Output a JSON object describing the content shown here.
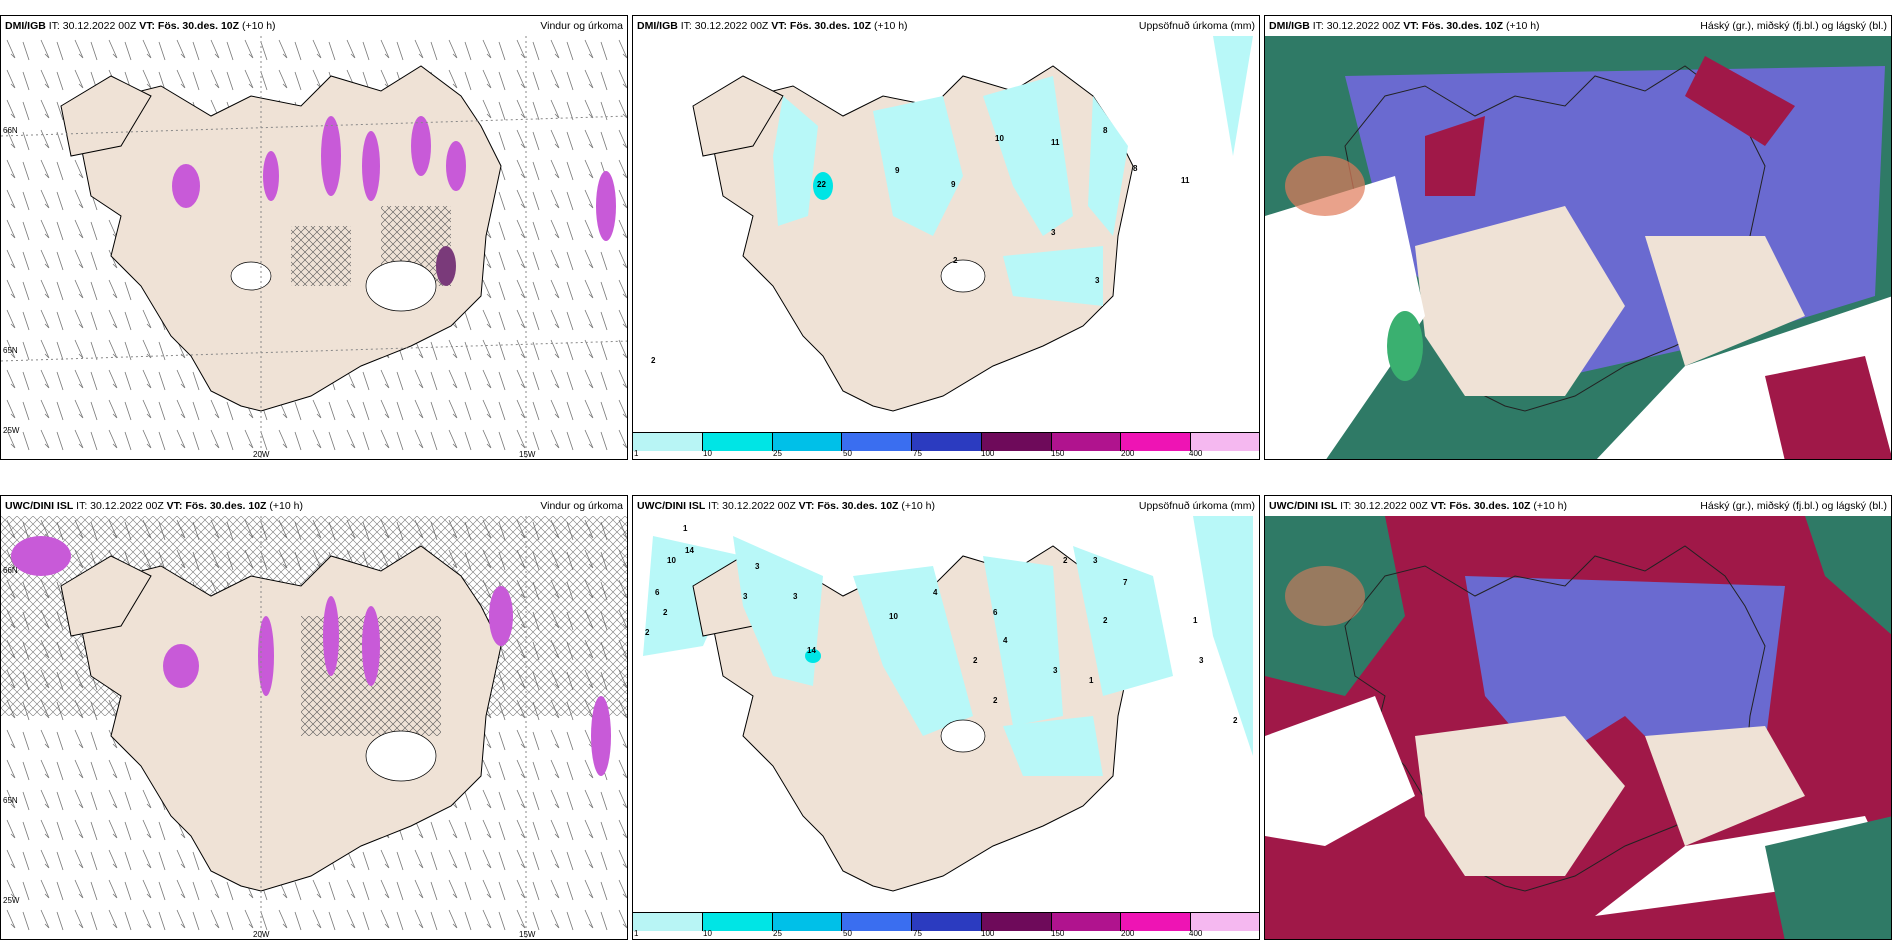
{
  "panels": [
    {
      "id": "p1",
      "model": "DMI/IGB",
      "it": "IT: 30.12.2022 00Z",
      "vt": "VT: Fös. 30.des. 10Z",
      "lead": "(+10 h)",
      "title": "Vindur og úrkoma",
      "lat_labels": [
        "66N",
        "65N"
      ],
      "lon_labels": [
        "25W",
        "20W",
        "15W"
      ]
    },
    {
      "id": "p2",
      "model": "DMI/IGB",
      "it": "IT: 30.12.2022 00Z",
      "vt": "VT: Fös. 30.des. 10Z",
      "lead": "(+10 h)",
      "title": "Uppsöfnuð úrkoma (mm)",
      "values": [
        "22",
        "9",
        "9",
        "10",
        "11",
        "8",
        "8",
        "11",
        "3",
        "2",
        "3",
        "2"
      ]
    },
    {
      "id": "p3",
      "model": "DMI/IGB",
      "it": "IT: 30.12.2022 00Z",
      "vt": "VT: Fös. 30.des. 10Z",
      "lead": "(+10 h)",
      "title": "Háský (gr.), miðský (fj.bl.) og lágský (bl.)"
    },
    {
      "id": "p4",
      "model": "UWC/DINI ISL",
      "it": "IT: 30.12.2022 00Z",
      "vt": "VT: Fös. 30.des. 10Z",
      "lead": "(+10 h)",
      "title": "Vindur og úrkoma",
      "lat_labels": [
        "66N",
        "65N"
      ],
      "lon_labels": [
        "25W",
        "20W",
        "15W"
      ]
    },
    {
      "id": "p5",
      "model": "UWC/DINI ISL",
      "it": "IT: 30.12.2022 00Z",
      "vt": "VT: Fös. 30.des. 10Z",
      "lead": "(+10 h)",
      "title": "Uppsöfnuð úrkoma (mm)",
      "values": [
        "1",
        "14",
        "10",
        "6",
        "2",
        "2",
        "3",
        "3",
        "3",
        "14",
        "10",
        "4",
        "6",
        "4",
        "2",
        "2",
        "3",
        "1",
        "2",
        "3",
        "2",
        "7",
        "1",
        "3",
        "2"
      ]
    },
    {
      "id": "p6",
      "model": "UWC/DINI ISL",
      "it": "IT: 30.12.2022 00Z",
      "vt": "VT: Fös. 30.des. 10Z",
      "lead": "(+10 h)",
      "title": "Háský (gr.), miðský (fj.bl.) og lágský (bl.)"
    }
  ],
  "legend": {
    "ticks": [
      "1",
      "10",
      "25",
      "50",
      "75",
      "100",
      "150",
      "200",
      "400"
    ],
    "colors": [
      "#b8f5f5",
      "#00e5e5",
      "#00c0e8",
      "#3a6ef0",
      "#2b3bc0",
      "#6e0a5a",
      "#b0138e",
      "#ee14b4",
      "#f5b8f0"
    ]
  },
  "colors": {
    "land": "#efe2d6",
    "precip_light": "#b8f8f8",
    "purple": "#c85ad8",
    "cloud_blue": "#6a6ad0",
    "cloud_red": "#a01848",
    "cloud_green": "#2f7a66"
  }
}
